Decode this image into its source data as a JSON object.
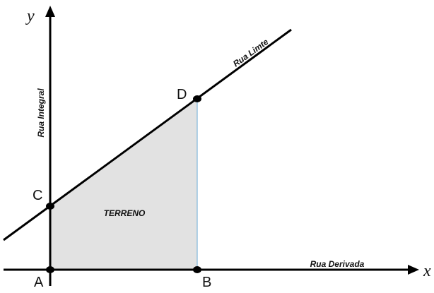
{
  "axes": {
    "x_label": "x",
    "y_label": "y"
  },
  "streets": {
    "vertical": "Rua Integral",
    "horizontal": "Rua Derivada",
    "diagonal": "Rua Limte"
  },
  "region": {
    "label": "TERRENO"
  },
  "points": [
    {
      "label": "A"
    },
    {
      "label": "B"
    },
    {
      "label": "C"
    },
    {
      "label": "D"
    }
  ]
}
